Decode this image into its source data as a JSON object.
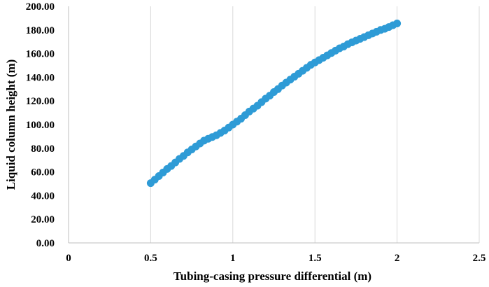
{
  "chart_data": {
    "type": "scatter",
    "title": "",
    "xlabel": "Tubing-casing pressure differential (m)",
    "ylabel": "Liquid column height (m)",
    "xlim": [
      0,
      2.5
    ],
    "ylim": [
      0,
      200
    ],
    "x_ticks": [
      {
        "value": 0,
        "label": "0"
      },
      {
        "value": 0.5,
        "label": "0.5"
      },
      {
        "value": 1,
        "label": "1"
      },
      {
        "value": 1.5,
        "label": "1.5"
      },
      {
        "value": 2,
        "label": "2"
      },
      {
        "value": 2.5,
        "label": "2.5"
      }
    ],
    "y_ticks": [
      {
        "value": 0,
        "label": "0.00"
      },
      {
        "value": 20,
        "label": "20.00"
      },
      {
        "value": 40,
        "label": "40.00"
      },
      {
        "value": 60,
        "label": "60.00"
      },
      {
        "value": 80,
        "label": "80.00"
      },
      {
        "value": 100,
        "label": "100.00"
      },
      {
        "value": 120,
        "label": "120.00"
      },
      {
        "value": 140,
        "label": "140.00"
      },
      {
        "value": 160,
        "label": "160.00"
      },
      {
        "value": 180,
        "label": "180.00"
      },
      {
        "value": 200,
        "label": "200.00"
      }
    ],
    "grid": "vertical",
    "legend": "none",
    "marker_color": "#2e9bd6",
    "series": [
      {
        "x": [
          0.5,
          0.525,
          0.55,
          0.575,
          0.6,
          0.625,
          0.65,
          0.675,
          0.7,
          0.725,
          0.75,
          0.775,
          0.8,
          0.825,
          0.85,
          0.875,
          0.9,
          0.925,
          0.95,
          0.975,
          1.0,
          1.025,
          1.05,
          1.075,
          1.1,
          1.125,
          1.15,
          1.175,
          1.2,
          1.225,
          1.25,
          1.275,
          1.3,
          1.325,
          1.35,
          1.375,
          1.4,
          1.425,
          1.45,
          1.475,
          1.5,
          1.525,
          1.55,
          1.575,
          1.6,
          1.625,
          1.65,
          1.675,
          1.7,
          1.725,
          1.75,
          1.775,
          1.8,
          1.825,
          1.85,
          1.875,
          1.9,
          1.925,
          1.95,
          1.975,
          2.0
        ],
        "y": [
          50.5,
          53.5,
          56.5,
          59.5,
          62.5,
          65.0,
          68.0,
          71.0,
          73.5,
          76.5,
          79.0,
          81.5,
          84.0,
          86.5,
          88.0,
          89.5,
          91.0,
          93.0,
          95.0,
          97.5,
          100.0,
          102.5,
          105.0,
          108.0,
          111.0,
          113.5,
          116.0,
          119.0,
          122.0,
          124.5,
          127.5,
          130.0,
          133.0,
          135.5,
          138.0,
          140.5,
          143.0,
          145.5,
          148.0,
          150.5,
          152.5,
          154.5,
          156.5,
          158.5,
          160.5,
          162.5,
          164.5,
          166.0,
          168.0,
          169.5,
          171.0,
          172.5,
          174.0,
          175.5,
          177.0,
          178.5,
          180.0,
          181.0,
          182.5,
          184.0,
          185.5
        ]
      }
    ]
  }
}
